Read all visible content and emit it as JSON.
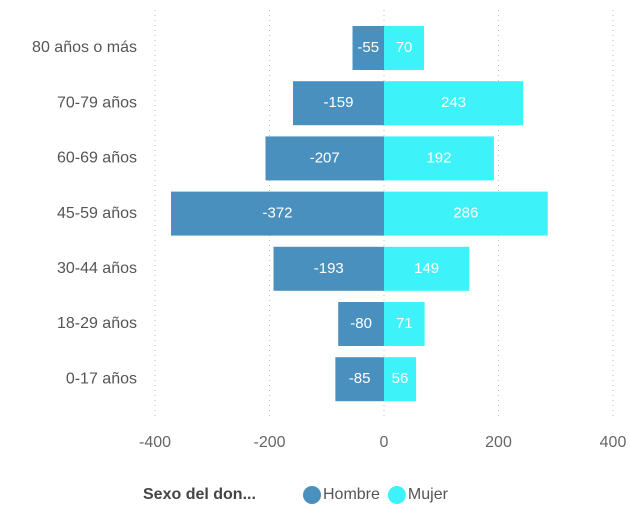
{
  "chart_data": {
    "type": "bar",
    "orientation": "horizontal",
    "stacked": true,
    "categories": [
      "80 años o más",
      "70-79 años",
      "60-69 años",
      "45-59 años",
      "30-44 años",
      "18-29 años",
      "0-17 años"
    ],
    "series": [
      {
        "name": "Hombre",
        "color": "#4a90bf",
        "values": [
          -55,
          -159,
          -207,
          -372,
          -193,
          -80,
          -85
        ]
      },
      {
        "name": "Mujer",
        "color": "#3ef2fa",
        "values": [
          70,
          243,
          192,
          286,
          149,
          71,
          56
        ]
      }
    ],
    "legend_title": "Sexo del don...",
    "xlim": [
      -400,
      400
    ],
    "xticks": [
      -400,
      -200,
      0,
      200,
      400
    ],
    "grid": true,
    "legend": "bottom"
  }
}
